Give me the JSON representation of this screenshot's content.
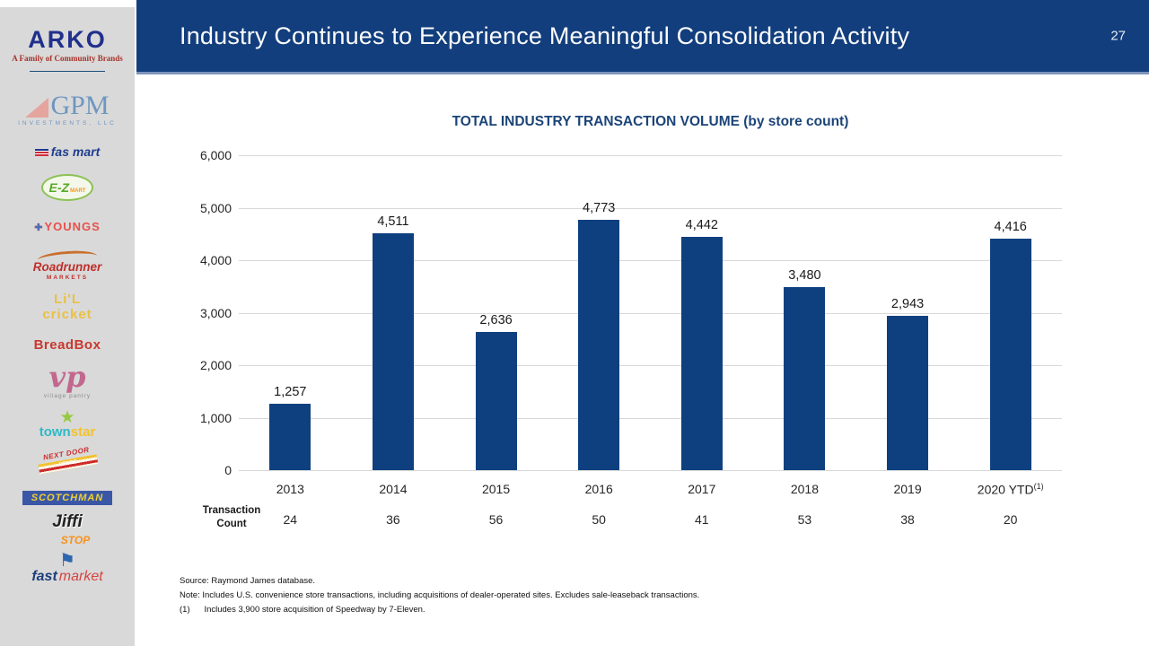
{
  "header": {
    "title": "Industry Continues to Experience Meaningful Consolidation Activity",
    "page_number": "27"
  },
  "sidebar": {
    "arko": {
      "name": "ARKO",
      "tagline": "A Family of Community Brands"
    },
    "brands": [
      {
        "id": "gpm-investments",
        "name": "GPM",
        "sub": "INVESTMENTS, LLC"
      },
      {
        "id": "fas-mart",
        "name": "fas mart"
      },
      {
        "id": "ez-mart",
        "name": "E-Z",
        "sub": "MART"
      },
      {
        "id": "youngs",
        "name": "YOUNGS"
      },
      {
        "id": "roadrunner-markets",
        "name": "Roadrunner",
        "sub": "MARKETS"
      },
      {
        "id": "lil-cricket",
        "name": "Li'L",
        "sub": "cricket"
      },
      {
        "id": "breadbox",
        "name": "BreadBox"
      },
      {
        "id": "village-pantry",
        "name": "vp",
        "sub": "village pantry"
      },
      {
        "id": "townstar",
        "name": "town",
        "sub": "star"
      },
      {
        "id": "next-door-store",
        "name": "NEXT DOOR",
        "sub": "STORE"
      },
      {
        "id": "scotchman",
        "name": "SCOTCHMAN"
      },
      {
        "id": "jiffi-stop",
        "name": "Jiffi",
        "sub": "STOP"
      },
      {
        "id": "fast-market",
        "name": "fast",
        "sub": "market"
      }
    ]
  },
  "chart_data": {
    "type": "bar",
    "title": "TOTAL INDUSTRY TRANSACTION VOLUME (by store count)",
    "categories": [
      "2013",
      "2014",
      "2015",
      "2016",
      "2017",
      "2018",
      "2019",
      "2020 YTD"
    ],
    "category_superscripts": [
      "",
      "",
      "",
      "",
      "",
      "",
      "",
      "(1)"
    ],
    "values": [
      1257,
      4511,
      2636,
      4773,
      4442,
      3480,
      2943,
      4416
    ],
    "value_labels": [
      "1,257",
      "4,511",
      "2,636",
      "4,773",
      "4,442",
      "3,480",
      "2,943",
      "4,416"
    ],
    "counts_row": {
      "label": "Transaction Count",
      "values": [
        24,
        36,
        56,
        50,
        41,
        53,
        38,
        20
      ]
    },
    "y_axis": {
      "ticks": [
        "6,000",
        "5,000",
        "4,000",
        "3,000",
        "2,000",
        "1,000",
        "0"
      ],
      "min": 0,
      "max": 6000
    },
    "grid": true,
    "legend": false,
    "bar_color": "#0E4080"
  },
  "footnotes": [
    "Source: Raymond James database.",
    "Note: Includes U.S. convenience store transactions, including acquisitions of dealer-operated sites. Excludes sale-leaseback transactions.",
    "(1)      Includes 3,900 store acquisition of Speedway by 7-Eleven."
  ]
}
